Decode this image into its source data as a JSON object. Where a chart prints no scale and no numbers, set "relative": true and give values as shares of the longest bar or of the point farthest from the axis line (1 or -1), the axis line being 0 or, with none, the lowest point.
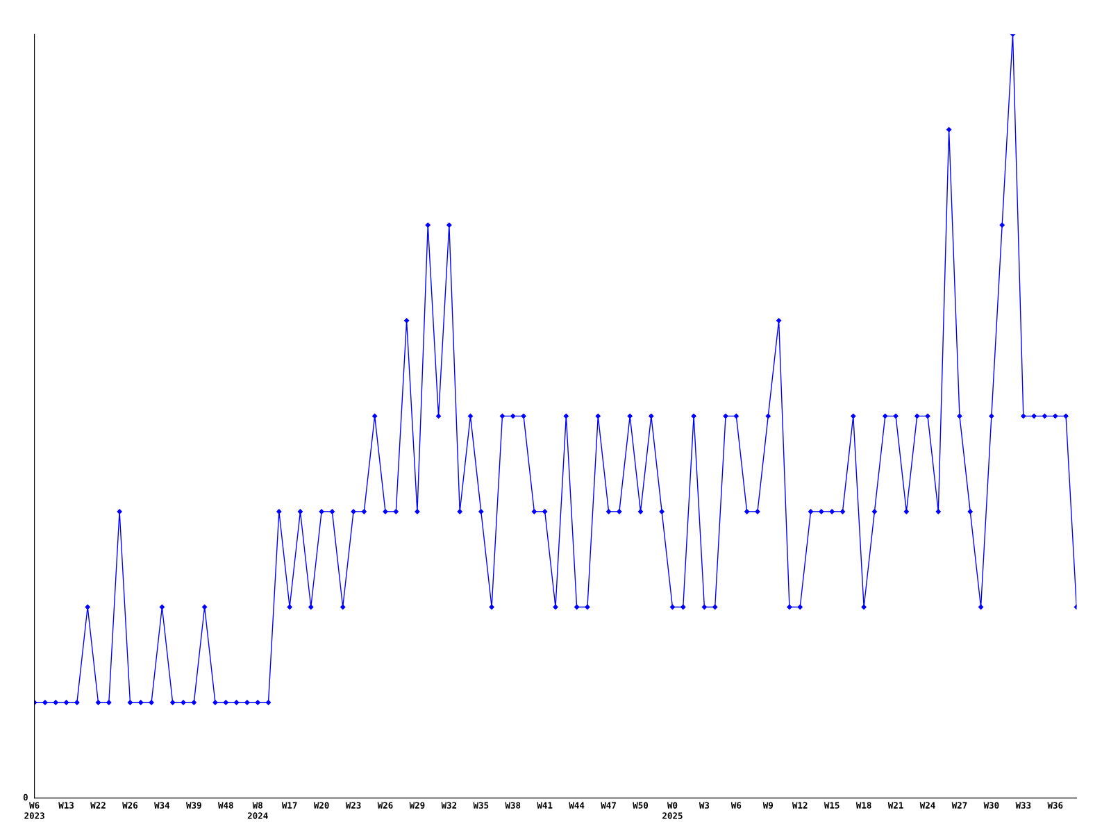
{
  "chart_data": {
    "type": "line",
    "relative": true,
    "color": "#0000ff",
    "marker": "diamond",
    "line_style": "solid",
    "grid": false,
    "legend": false,
    "annotations": [
      "0"
    ],
    "categories": [
      "W6\n2023",
      null,
      null,
      "W13",
      null,
      null,
      "W22",
      null,
      null,
      "W26",
      null,
      null,
      "W34",
      null,
      null,
      "W39",
      null,
      null,
      "W48",
      null,
      null,
      "W8\n2024",
      null,
      null,
      "W17",
      null,
      null,
      "W20",
      null,
      null,
      "W23",
      null,
      null,
      "W26",
      null,
      null,
      "W29",
      null,
      null,
      "W32",
      null,
      null,
      "W35",
      null,
      null,
      "W38",
      null,
      null,
      "W41",
      null,
      null,
      "W44",
      null,
      null,
      "W47",
      null,
      null,
      "W50",
      null,
      null,
      "W0\n2025",
      null,
      null,
      "W3",
      null,
      null,
      "W6",
      null,
      null,
      "W9",
      null,
      null,
      "W12",
      null,
      null,
      "W15",
      null,
      null,
      "W18",
      null,
      null,
      "W21",
      null,
      null,
      "W24",
      null,
      null,
      "W27",
      null,
      null,
      "W30",
      null,
      null,
      "W33",
      null,
      null,
      "W36",
      null,
      null
    ],
    "values": [
      0.125,
      0.125,
      0.125,
      0.125,
      0.125,
      0.25,
      0.125,
      0.125,
      0.375,
      0.125,
      0.125,
      0.125,
      0.25,
      0.125,
      0.125,
      0.125,
      0.25,
      0.125,
      0.125,
      0.125,
      0.125,
      0.125,
      0.125,
      0.375,
      0.25,
      0.375,
      0.25,
      0.375,
      0.375,
      0.25,
      0.375,
      0.375,
      0.5,
      0.375,
      0.375,
      0.625,
      0.375,
      0.75,
      0.5,
      0.75,
      0.375,
      0.5,
      0.375,
      0.25,
      0.5,
      0.5,
      0.5,
      0.375,
      0.375,
      0.25,
      0.5,
      0.25,
      0.25,
      0.5,
      0.375,
      0.375,
      0.5,
      0.375,
      0.5,
      0.375,
      0.25,
      0.25,
      0.5,
      0.25,
      0.25,
      0.5,
      0.5,
      0.375,
      0.375,
      0.5,
      0.625,
      0.25,
      0.25,
      0.375,
      0.375,
      0.375,
      0.375,
      0.5,
      0.25,
      0.375,
      0.5,
      0.5,
      0.375,
      0.5,
      0.5,
      0.375,
      0.875,
      0.5,
      0.375,
      0.25,
      0.5,
      0.75,
      1,
      0.5,
      0.5,
      0.5,
      0.5,
      0.5,
      0.25
    ]
  }
}
